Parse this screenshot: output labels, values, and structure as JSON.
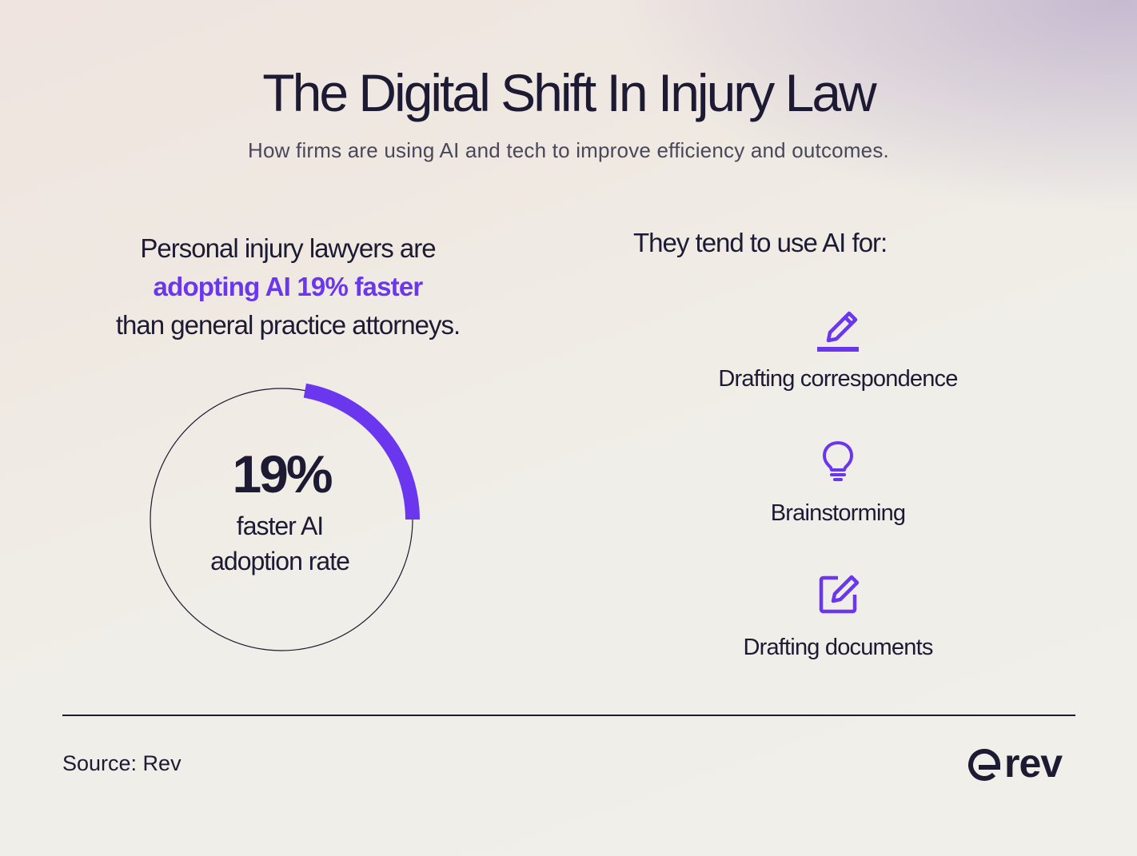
{
  "title": "The Digital Shift In Injury Law",
  "subtitle": "How firms are using AI and tech to improve efficiency and outcomes.",
  "stat": {
    "line1": "Personal injury lawyers are",
    "highlight": "adopting AI 19% faster",
    "line3": "than general practice attorneys."
  },
  "gauge": {
    "value_label": "19%",
    "fraction": 0.19,
    "caption_line1": "faster AI",
    "caption_line2": "adoption rate"
  },
  "uses": {
    "heading": "They tend to use AI for:",
    "items": [
      {
        "label": "Drafting correspondence",
        "icon": "pencil-icon"
      },
      {
        "label": "Brainstorming",
        "icon": "lightbulb-icon"
      },
      {
        "label": "Drafting documents",
        "icon": "edit-document-icon"
      }
    ]
  },
  "footer": {
    "source": "Source: Rev",
    "logo_text": "rev"
  },
  "colors": {
    "accent": "#6a36ee",
    "text": "#1d1a33"
  }
}
